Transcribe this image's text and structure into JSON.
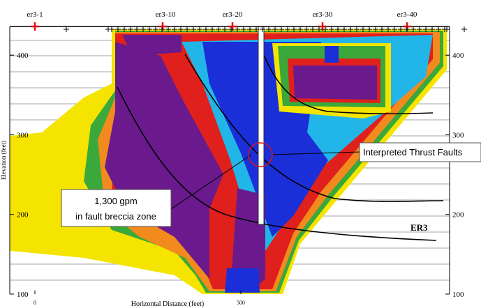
{
  "axes": {
    "y_label": "Elevation (feet)",
    "x_label": "Horizontal Distance (feet)",
    "yticks": [
      100,
      200,
      300,
      400
    ],
    "xticks": [
      0,
      500
    ],
    "ylim": [
      100,
      436
    ],
    "xlim": [
      -61,
      1007
    ]
  },
  "electrodes": [
    "er3-1",
    "er3-10",
    "er3-20",
    "er3-30",
    "er3-40"
  ],
  "annotations": {
    "faults": "Interpreted Thrust Faults",
    "yield": [
      "1,300 gpm",
      "in fault breccia zone"
    ],
    "section": "ER3"
  }
}
